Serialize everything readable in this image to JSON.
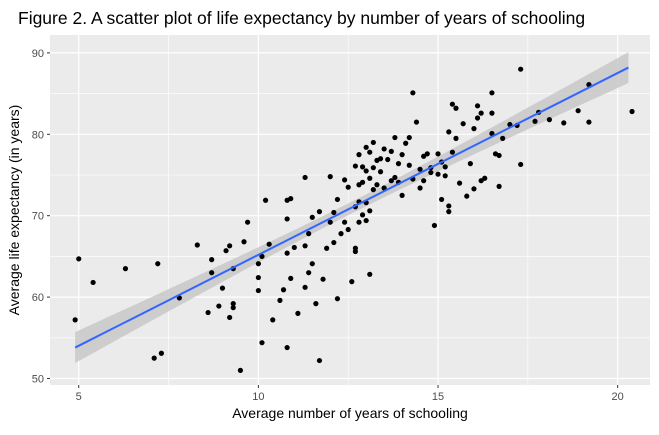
{
  "chart_data": {
    "type": "scatter",
    "title": "Figure 2. A scatter plot of life expectancy by number of years of schooling",
    "xlabel": "Average number of years of schooling",
    "ylabel": "Average life expectancy (in years)",
    "xlim": [
      4.2,
      20.9
    ],
    "ylim": [
      49.2,
      92.2
    ],
    "x_ticks": [
      5,
      10,
      15,
      20
    ],
    "y_ticks": [
      50,
      60,
      70,
      80,
      90
    ],
    "grid": true,
    "legend": "none",
    "colors": {
      "panel": "#ebebeb",
      "grid_major": "#ffffff",
      "points": "#000000",
      "trend_line": "#3366ff",
      "confidence_band": "#c8c8c8"
    },
    "trend": {
      "method": "linear",
      "x": [
        4.9,
        20.3
      ],
      "y": [
        53.8,
        88.2
      ],
      "ci": [
        [
          51.7,
          55.9
        ],
        [
          86.5,
          89.9
        ]
      ]
    },
    "points": [
      [
        4.9,
        57.2
      ],
      [
        5.0,
        64.7
      ],
      [
        5.4,
        61.8
      ],
      [
        6.3,
        63.5
      ],
      [
        7.1,
        52.5
      ],
      [
        7.2,
        64.1
      ],
      [
        7.3,
        53.1
      ],
      [
        7.8,
        59.9
      ],
      [
        8.3,
        66.4
      ],
      [
        8.6,
        58.1
      ],
      [
        8.7,
        63.0
      ],
      [
        8.7,
        64.6
      ],
      [
        8.9,
        58.9
      ],
      [
        9.0,
        61.1
      ],
      [
        9.1,
        65.7
      ],
      [
        9.2,
        57.5
      ],
      [
        9.2,
        66.3
      ],
      [
        9.3,
        58.7
      ],
      [
        9.3,
        59.2
      ],
      [
        9.3,
        63.5
      ],
      [
        9.5,
        51.0
      ],
      [
        9.6,
        66.8
      ],
      [
        9.7,
        69.2
      ],
      [
        10.0,
        60.8
      ],
      [
        10.0,
        62.4
      ],
      [
        10.0,
        64.1
      ],
      [
        10.1,
        54.4
      ],
      [
        10.1,
        65.0
      ],
      [
        10.2,
        71.9
      ],
      [
        10.3,
        66.5
      ],
      [
        10.4,
        57.2
      ],
      [
        10.6,
        59.6
      ],
      [
        10.7,
        60.9
      ],
      [
        10.8,
        65.4
      ],
      [
        10.8,
        69.6
      ],
      [
        10.8,
        71.9
      ],
      [
        10.8,
        53.8
      ],
      [
        10.9,
        62.3
      ],
      [
        10.9,
        72.1
      ],
      [
        11.0,
        66.1
      ],
      [
        11.1,
        58.0
      ],
      [
        11.3,
        66.3
      ],
      [
        11.3,
        74.7
      ],
      [
        11.3,
        61.2
      ],
      [
        11.4,
        63.0
      ],
      [
        11.4,
        67.8
      ],
      [
        11.5,
        69.8
      ],
      [
        11.5,
        64.1
      ],
      [
        11.6,
        59.2
      ],
      [
        11.7,
        52.2
      ],
      [
        11.7,
        70.5
      ],
      [
        11.8,
        62.2
      ],
      [
        11.9,
        66.0
      ],
      [
        12.0,
        69.2
      ],
      [
        12.0,
        74.8
      ],
      [
        12.1,
        66.7
      ],
      [
        12.1,
        70.4
      ],
      [
        12.2,
        72.0
      ],
      [
        12.2,
        59.8
      ],
      [
        12.3,
        67.8
      ],
      [
        12.4,
        69.2
      ],
      [
        12.4,
        74.4
      ],
      [
        12.5,
        68.3
      ],
      [
        12.5,
        73.5
      ],
      [
        12.6,
        61.9
      ],
      [
        12.7,
        66.0
      ],
      [
        12.7,
        65.6
      ],
      [
        12.7,
        71.1
      ],
      [
        12.7,
        76.1
      ],
      [
        12.8,
        69.2
      ],
      [
        12.8,
        71.7
      ],
      [
        12.8,
        73.8
      ],
      [
        12.8,
        77.5
      ],
      [
        12.9,
        70.1
      ],
      [
        12.9,
        74.1
      ],
      [
        12.9,
        76.0
      ],
      [
        13.0,
        78.4
      ],
      [
        13.0,
        71.6
      ],
      [
        13.0,
        69.4
      ],
      [
        13.0,
        75.5
      ],
      [
        13.1,
        74.6
      ],
      [
        13.1,
        70.6
      ],
      [
        13.1,
        62.8
      ],
      [
        13.1,
        77.8
      ],
      [
        13.2,
        73.2
      ],
      [
        13.2,
        75.9
      ],
      [
        13.2,
        79.0
      ],
      [
        13.3,
        73.8
      ],
      [
        13.3,
        76.8
      ],
      [
        13.4,
        77.0
      ],
      [
        13.4,
        75.4
      ],
      [
        13.5,
        73.4
      ],
      [
        13.5,
        78.2
      ],
      [
        13.6,
        76.9
      ],
      [
        13.7,
        74.3
      ],
      [
        13.7,
        77.9
      ],
      [
        13.8,
        74.7
      ],
      [
        13.8,
        79.6
      ],
      [
        13.9,
        74.1
      ],
      [
        13.9,
        76.4
      ],
      [
        14.0,
        72.5
      ],
      [
        14.0,
        77.5
      ],
      [
        14.1,
        78.9
      ],
      [
        14.2,
        76.2
      ],
      [
        14.2,
        79.6
      ],
      [
        14.3,
        74.5
      ],
      [
        14.3,
        85.1
      ],
      [
        14.4,
        81.5
      ],
      [
        14.5,
        73.4
      ],
      [
        14.5,
        75.7
      ],
      [
        14.6,
        74.3
      ],
      [
        14.6,
        77.3
      ],
      [
        14.7,
        77.6
      ],
      [
        14.8,
        75.9
      ],
      [
        14.8,
        75.3
      ],
      [
        14.9,
        68.8
      ],
      [
        15.0,
        75.1
      ],
      [
        15.0,
        77.6
      ],
      [
        15.1,
        76.6
      ],
      [
        15.1,
        72.0
      ],
      [
        15.2,
        76.0
      ],
      [
        15.2,
        74.9
      ],
      [
        15.3,
        80.3
      ],
      [
        15.3,
        70.5
      ],
      [
        15.3,
        71.2
      ],
      [
        15.4,
        77.8
      ],
      [
        15.4,
        83.7
      ],
      [
        15.5,
        83.2
      ],
      [
        15.5,
        79.5
      ],
      [
        15.6,
        74.0
      ],
      [
        15.7,
        81.3
      ],
      [
        15.8,
        72.4
      ],
      [
        15.9,
        76.4
      ],
      [
        16.0,
        73.3
      ],
      [
        16.0,
        80.7
      ],
      [
        16.1,
        82.0
      ],
      [
        16.1,
        83.5
      ],
      [
        16.2,
        82.6
      ],
      [
        16.2,
        74.3
      ],
      [
        16.3,
        74.6
      ],
      [
        16.5,
        82.6
      ],
      [
        16.5,
        85.1
      ],
      [
        16.5,
        80.1
      ],
      [
        16.6,
        77.6
      ],
      [
        16.7,
        73.6
      ],
      [
        16.7,
        77.4
      ],
      [
        16.8,
        79.5
      ],
      [
        17.0,
        81.2
      ],
      [
        17.2,
        81.1
      ],
      [
        17.3,
        88.0
      ],
      [
        17.3,
        76.3
      ],
      [
        17.7,
        81.6
      ],
      [
        17.8,
        82.7
      ],
      [
        18.1,
        81.8
      ],
      [
        18.5,
        81.4
      ],
      [
        18.9,
        82.9
      ],
      [
        19.2,
        86.1
      ],
      [
        19.2,
        81.5
      ],
      [
        20.4,
        82.8
      ]
    ]
  }
}
